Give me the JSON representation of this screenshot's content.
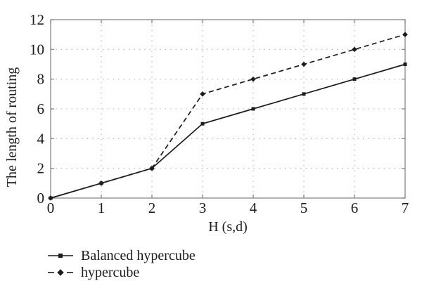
{
  "chart_data": {
    "type": "line",
    "title": "",
    "xlabel": "H (s,d)",
    "ylabel": "The length of routing",
    "xlim": [
      0,
      7
    ],
    "ylim": [
      0,
      12
    ],
    "xticks": [
      0,
      1,
      2,
      3,
      4,
      5,
      6,
      7
    ],
    "yticks": [
      0,
      2,
      4,
      6,
      8,
      10,
      12
    ],
    "grid": "dotted",
    "box": true,
    "legend_position": "below-left",
    "x": [
      0,
      1,
      2,
      3,
      4,
      5,
      6,
      7
    ],
    "series": [
      {
        "name": "Balanced hypercube",
        "values": [
          0,
          1,
          2,
          5,
          6,
          7,
          8,
          9
        ],
        "line_style": "solid",
        "marker": "square",
        "color": "#1c1c1c"
      },
      {
        "name": "hypercube",
        "values": [
          0,
          1,
          2,
          7,
          8,
          9,
          10,
          11
        ],
        "line_style": "dashed",
        "marker": "diamond",
        "color": "#1c1c1c"
      }
    ],
    "colors": {
      "background": "#ffffff",
      "grid": "#ababab",
      "axis": "#7d7d7d",
      "line": "#1c1c1c",
      "text": "#1c1c1c"
    }
  }
}
